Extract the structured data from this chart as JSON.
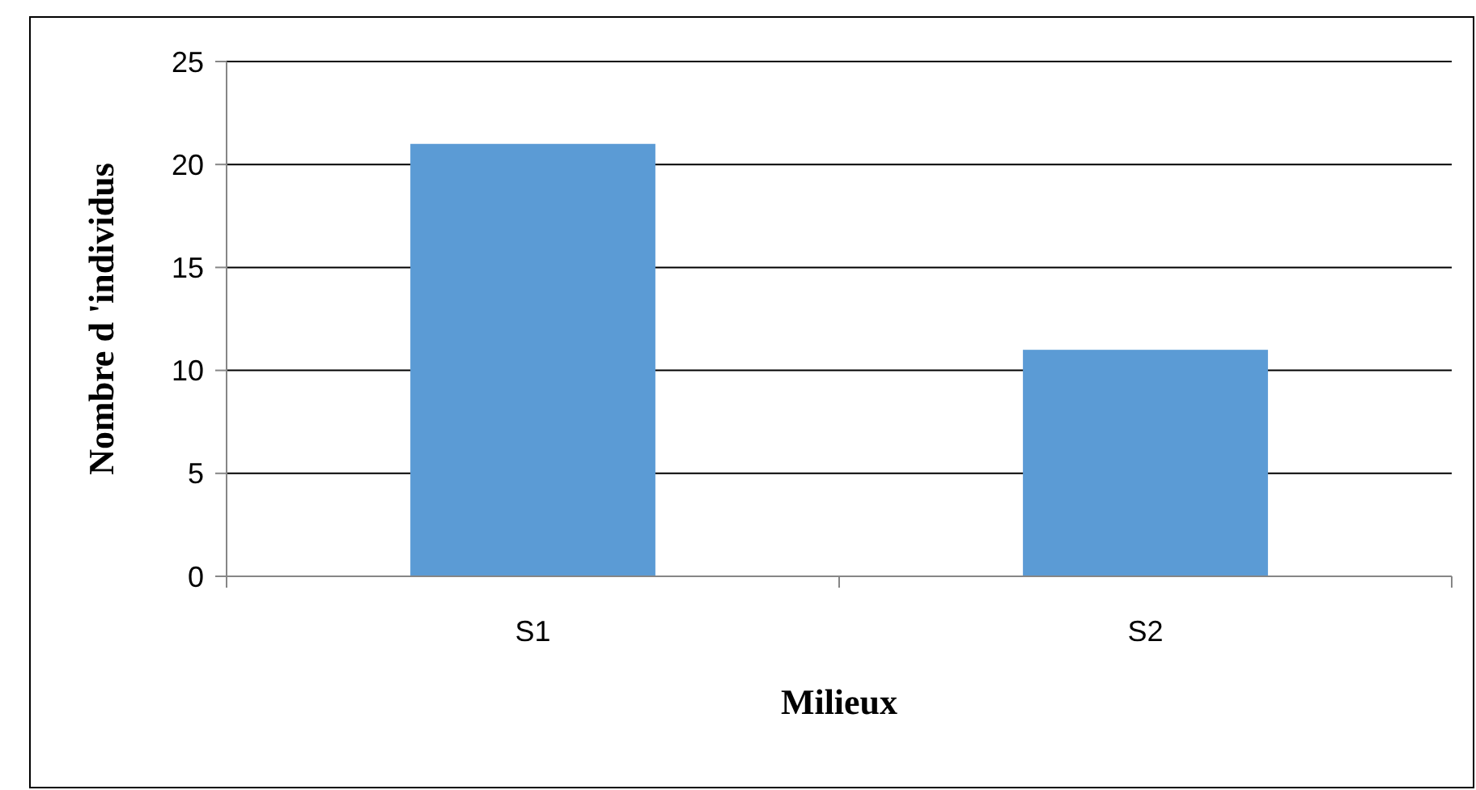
{
  "chart_data": {
    "type": "bar",
    "xlabel": "Milieux",
    "ylabel": "Nombre d 'individus",
    "categories": [
      "S1",
      "S2"
    ],
    "values": [
      21,
      11
    ],
    "color": "#5b9bd5",
    "ylim": [
      0,
      25
    ],
    "yticks": [
      0,
      5,
      10,
      15,
      20,
      25
    ],
    "grid": "y"
  }
}
